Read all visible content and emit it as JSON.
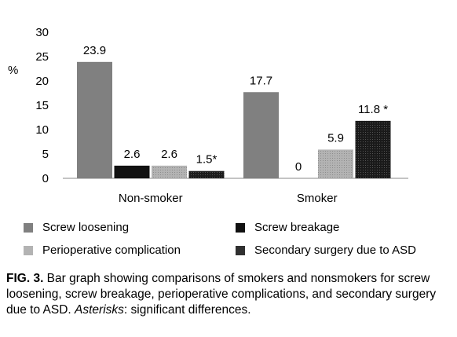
{
  "chart_data": {
    "type": "bar",
    "categories": [
      "Non-smoker",
      "Smoker"
    ],
    "ylabel": "%",
    "ylim": [
      0,
      30
    ],
    "yticks": [
      0,
      5,
      10,
      15,
      20,
      25,
      30
    ],
    "grid": false,
    "legend_position": "bottom",
    "series": [
      {
        "name": "Screw loosening",
        "values": [
          23.9,
          17.7
        ],
        "labels": [
          "23.9",
          "17.7"
        ],
        "color": "#808080"
      },
      {
        "name": "Screw breakage",
        "values": [
          2.6,
          0
        ],
        "labels": [
          "2.6",
          "0"
        ],
        "color": "#111111"
      },
      {
        "name": "Perioperative complication",
        "values": [
          2.6,
          5.9
        ],
        "labels": [
          "2.6",
          "5.9"
        ],
        "color": "#a6a6a6"
      },
      {
        "name": "Secondary surgery due to ASD",
        "values": [
          1.5,
          11.8
        ],
        "labels": [
          "1.5*",
          "11.8 *"
        ],
        "color": "#404040"
      }
    ]
  },
  "caption": {
    "label": "FIG. 3.",
    "text_before": " Bar graph showing comparisons of smokers and nonsmokers for screw loosening, screw breakage, perioperative complications, and secondary surgery due to ASD. ",
    "italic": "Asterisks",
    "text_after": ": significant differences."
  }
}
